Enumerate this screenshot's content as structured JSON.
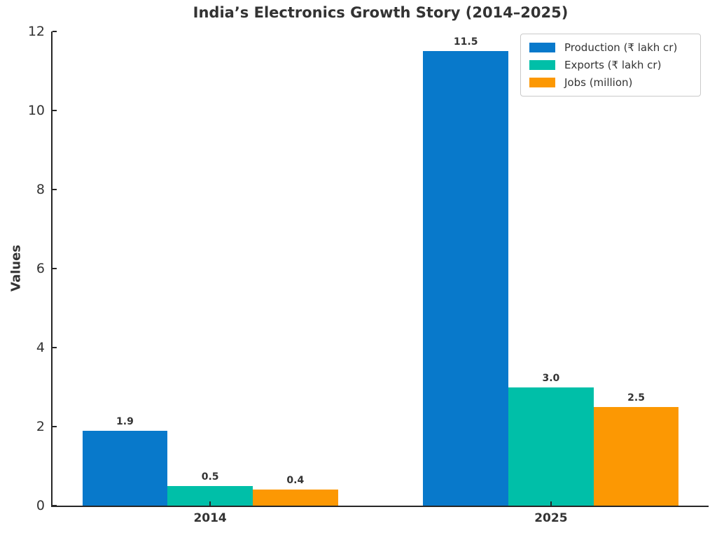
{
  "chart_data": {
    "type": "bar",
    "title": "India’s Electronics Growth Story (2014–2025)",
    "ylabel": "Values",
    "xlabel": "",
    "categories": [
      "2014",
      "2025"
    ],
    "series": [
      {
        "name": "Production (₹ lakh cr)",
        "color": "#0879cb",
        "values": [
          1.9,
          11.5
        ],
        "value_labels": [
          "1.9",
          "11.5"
        ]
      },
      {
        "name": "Exports (₹ lakh cr)",
        "color": "#00bfa8",
        "values": [
          0.5,
          3.0
        ],
        "value_labels": [
          "0.5",
          "3.0"
        ]
      },
      {
        "name": "Jobs (million)",
        "color": "#fc9803",
        "values": [
          0.4,
          2.5
        ],
        "value_labels": [
          "0.4",
          "2.5"
        ]
      }
    ],
    "ylim": [
      0,
      12
    ],
    "yticks": [
      "0",
      "2",
      "4",
      "6",
      "8",
      "10",
      "12"
    ],
    "grid": false,
    "legend_position": "upper right"
  }
}
